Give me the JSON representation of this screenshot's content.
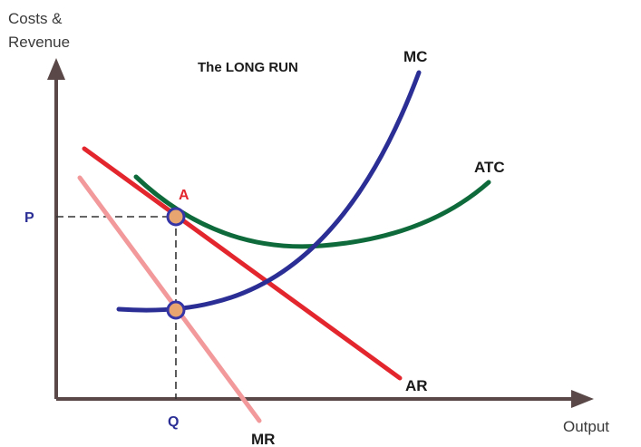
{
  "diagram": {
    "title": "The LONG RUN",
    "y_axis_title_line1": "Costs &",
    "y_axis_title_line2": "Revenue",
    "x_axis_title": "Output",
    "colors": {
      "axis": "#5a4848",
      "mc": "#2b2f95",
      "atc": "#0e6a3a",
      "ar": "#e3262e",
      "mr": "#f2999b",
      "point_fill": "#e8a56f",
      "point_stroke": "#3535a8",
      "price_label": "#2b2f95",
      "point_a_label": "#e3262e",
      "dashed": "#333333"
    },
    "curves": {
      "mc": "MC",
      "atc": "ATC",
      "ar": "AR",
      "mr": "MR"
    },
    "points": {
      "a": "A"
    },
    "ticks": {
      "price": "P",
      "quantity": "Q"
    }
  }
}
